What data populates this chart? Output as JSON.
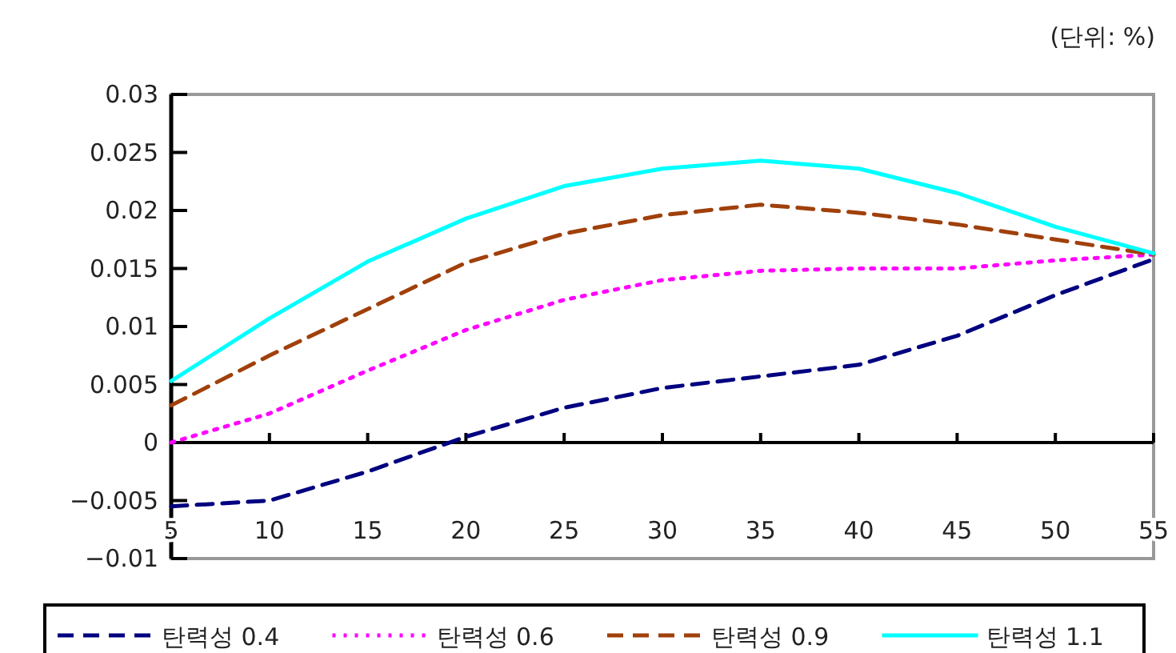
{
  "chart_data": {
    "type": "line",
    "annotations": [
      "(단위: %)"
    ],
    "x": [
      5,
      10,
      15,
      20,
      25,
      30,
      35,
      40,
      45,
      50,
      55
    ],
    "xlim": [
      5,
      55
    ],
    "xticks": [
      5,
      10,
      15,
      20,
      25,
      30,
      35,
      40,
      45,
      50,
      55
    ],
    "ylim": [
      -0.01,
      0.03
    ],
    "yticks": [
      {
        "value": -0.01,
        "label": "−0.01"
      },
      {
        "value": -0.005,
        "label": "−0.005"
      },
      0,
      0.005,
      0.01,
      0.015,
      0.02,
      0.025,
      0.03
    ],
    "legend": "bottom",
    "marker": "none",
    "series": [
      {
        "name": "탄력성 0.4",
        "color": "#000080",
        "line_style": "dashed",
        "values": [
          -0.0055,
          -0.005,
          -0.0025,
          0.0005,
          0.003,
          0.0047,
          0.0057,
          0.0067,
          0.0092,
          0.0127,
          0.0158
        ]
      },
      {
        "name": "탄력성 0.6",
        "color": "#ff00ff",
        "line_style": "dotted",
        "values": [
          0.0,
          0.0025,
          0.0062,
          0.0097,
          0.0123,
          0.014,
          0.0148,
          0.015,
          0.015,
          0.0157,
          0.0162
        ]
      },
      {
        "name": "탄력성 0.9",
        "color": "#a0400a",
        "line_style": "dashed",
        "values": [
          0.0032,
          0.0075,
          0.0115,
          0.0155,
          0.018,
          0.0196,
          0.0205,
          0.0198,
          0.0188,
          0.0175,
          0.0162
        ]
      },
      {
        "name": "탄력성 1.1",
        "color": "#00ffff",
        "line_style": "solid",
        "values": [
          0.0053,
          0.0107,
          0.0156,
          0.0193,
          0.0221,
          0.0236,
          0.0243,
          0.0236,
          0.0215,
          0.0186,
          0.0163
        ]
      }
    ]
  }
}
